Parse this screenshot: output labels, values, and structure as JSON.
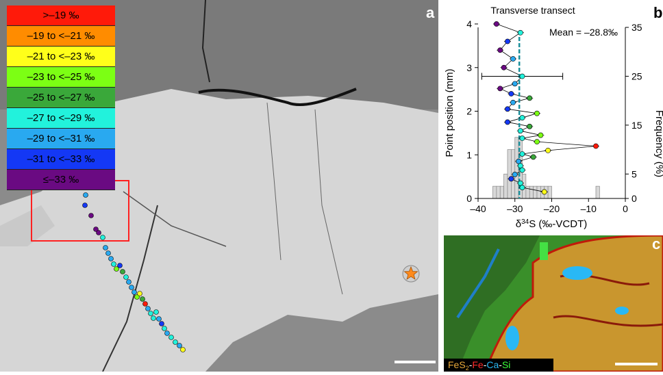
{
  "panel_a": {
    "letter": "a",
    "legend": [
      {
        "label": ">–19 ‰",
        "color": "#ff1a0a"
      },
      {
        "label": "–19 to <–21 ‰",
        "color": "#ff8c00"
      },
      {
        "label": "–21 to <–23 ‰",
        "color": "#ffff1a"
      },
      {
        "label": "–23 to <–25 ‰",
        "color": "#7cff14"
      },
      {
        "label": "–25 to <–27 ‰",
        "color": "#3aa83a"
      },
      {
        "label": "–27 to <–29 ‰",
        "color": "#22f2dc"
      },
      {
        "label": "–29 to <–31 ‰",
        "color": "#29a9f0"
      },
      {
        "label": "–31 to <–33 ‰",
        "color": "#1438f5"
      },
      {
        "label": "≤–33 ‰",
        "color": "#6a0a82"
      }
    ]
  },
  "panel_b": {
    "letter": "b",
    "chart_data": {
      "type": "scatter",
      "title": "Transverse transect",
      "annotation": "Mean = –28.8‰",
      "xlabel": "δ34S (‰-VCDT)",
      "ylabel": "Point position (mm)",
      "y2label": "Frequency (%)",
      "xlim": [
        -40,
        0
      ],
      "ylim": [
        0,
        4
      ],
      "y2lim": [
        0,
        35
      ],
      "xticks": [
        "–40",
        "–30",
        "–20",
        "–10",
        "0"
      ],
      "yticks": [
        "0",
        "1",
        "2",
        "3",
        "4"
      ],
      "y2ticks": [
        "0",
        "5",
        "15",
        "25",
        "35"
      ],
      "mean": -28.8,
      "points": [
        {
          "x": -35.0,
          "y": 4.0
        },
        {
          "x": -28.5,
          "y": 3.8
        },
        {
          "x": -32.0,
          "y": 3.6
        },
        {
          "x": -34.0,
          "y": 3.4
        },
        {
          "x": -30.5,
          "y": 3.2
        },
        {
          "x": -33.0,
          "y": 3.0
        },
        {
          "x": -28.0,
          "y": 2.8
        },
        {
          "x": -30.0,
          "y": 2.63
        },
        {
          "x": -34.0,
          "y": 2.52
        },
        {
          "x": -31.0,
          "y": 2.4
        },
        {
          "x": -26.0,
          "y": 2.3
        },
        {
          "x": -30.5,
          "y": 2.2
        },
        {
          "x": -32.0,
          "y": 2.05
        },
        {
          "x": -24.0,
          "y": 1.95
        },
        {
          "x": -28.0,
          "y": 1.85
        },
        {
          "x": -32.0,
          "y": 1.75
        },
        {
          "x": -26.0,
          "y": 1.65
        },
        {
          "x": -28.5,
          "y": 1.55
        },
        {
          "x": -23.0,
          "y": 1.45
        },
        {
          "x": -28.0,
          "y": 1.38
        },
        {
          "x": -24.0,
          "y": 1.3
        },
        {
          "x": -8.0,
          "y": 1.2
        },
        {
          "x": -21.0,
          "y": 1.1
        },
        {
          "x": -28.0,
          "y": 1.02
        },
        {
          "x": -25.0,
          "y": 0.95
        },
        {
          "x": -29.0,
          "y": 0.85
        },
        {
          "x": -28.5,
          "y": 0.75
        },
        {
          "x": -28.0,
          "y": 0.65
        },
        {
          "x": -30.0,
          "y": 0.55
        },
        {
          "x": -31.0,
          "y": 0.45
        },
        {
          "x": -28.5,
          "y": 0.35
        },
        {
          "x": -28.0,
          "y": 0.25
        },
        {
          "x": -22.0,
          "y": 0.15
        }
      ],
      "errorbar": {
        "x": -28.0,
        "y": 2.8,
        "xmin": -39.0,
        "xmax": -17.0
      },
      "histogram": {
        "bin_centers": [
          -35.5,
          -34.5,
          -33.5,
          -32.5,
          -31.5,
          -30.5,
          -29.5,
          -28.5,
          -27.5,
          -26.5,
          -25.5,
          -24.5,
          -23.5,
          -22.5,
          -21.5,
          -20.5,
          -7.5
        ],
        "frequency": [
          2.5,
          2.5,
          2.5,
          5,
          10,
          10,
          12.5,
          12.5,
          5,
          2.5,
          2.5,
          2.5,
          2.5,
          2.5,
          2.5,
          2.5,
          2.5
        ]
      }
    }
  },
  "panel_c": {
    "letter": "c",
    "label_parts": [
      {
        "text": "FeS",
        "color": "#e9a93a"
      },
      {
        "text": "2",
        "color": "#e9a93a",
        "sub": true
      },
      {
        "text": "-",
        "color": "#ffffff"
      },
      {
        "text": "Fe",
        "color": "#ff2a2a"
      },
      {
        "text": "-",
        "color": "#ffffff"
      },
      {
        "text": "Ca",
        "color": "#29b8f5"
      },
      {
        "text": "-",
        "color": "#ffffff"
      },
      {
        "text": "Si",
        "color": "#39ff39"
      }
    ]
  }
}
